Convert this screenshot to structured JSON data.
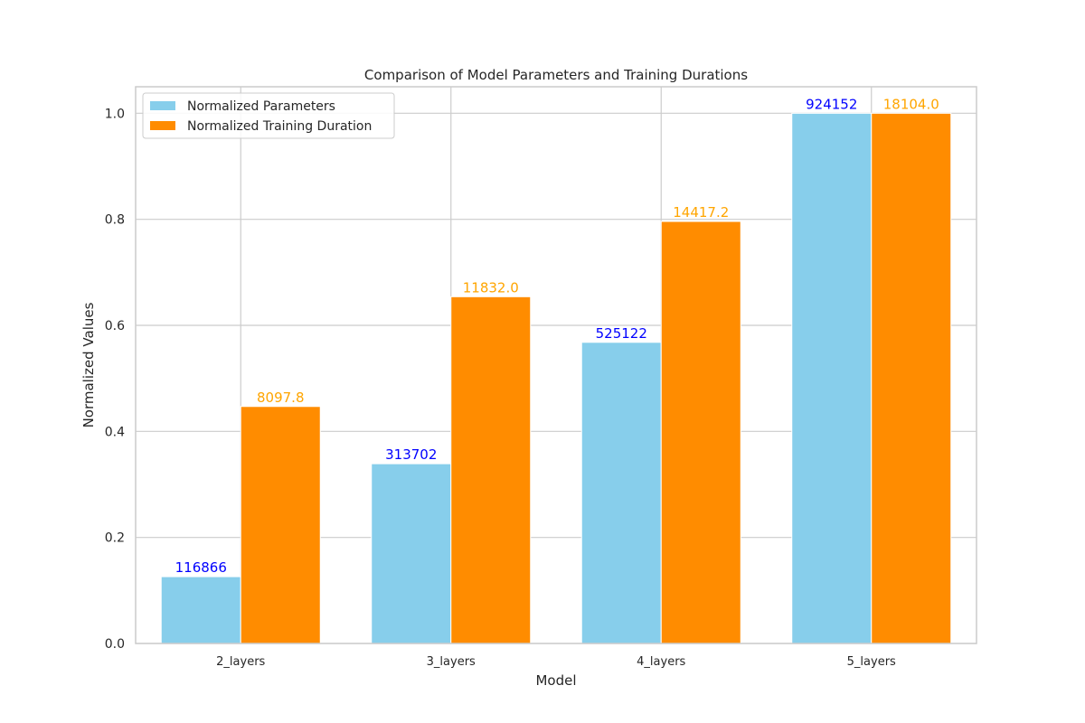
{
  "chart_data": {
    "type": "bar",
    "title": "Comparison of Model Parameters and Training Durations",
    "xlabel": "Model",
    "ylabel": "Normalized Values",
    "categories": [
      "2_layers",
      "3_layers",
      "4_layers",
      "5_layers"
    ],
    "ylim": [
      0,
      1.05
    ],
    "yticks": [
      "0.0",
      "0.2",
      "0.4",
      "0.6",
      "0.8",
      "1.0"
    ],
    "grid": true,
    "legend_position": "top-left",
    "series": [
      {
        "name": "Normalized Parameters",
        "color": "#87CEEB",
        "label_color": "#0000FF",
        "values": [
          0.126,
          0.339,
          0.568,
          1.0
        ],
        "labels": [
          "116866",
          "313702",
          "525122",
          "924152"
        ]
      },
      {
        "name": "Normalized Training Duration",
        "color": "#FF8C00",
        "label_color": "#FFA500",
        "values": [
          0.447,
          0.654,
          0.796,
          1.0
        ],
        "labels": [
          "8097.8",
          "11832.0",
          "14417.2",
          "18104.0"
        ]
      }
    ]
  }
}
